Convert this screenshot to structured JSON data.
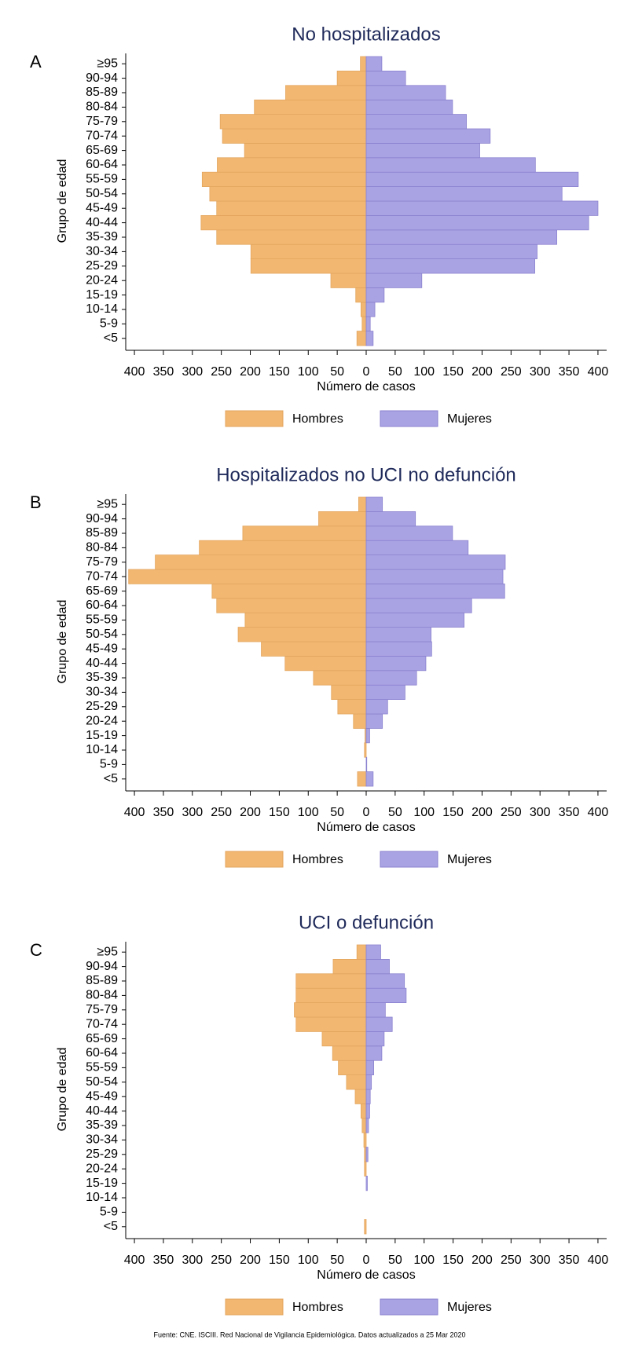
{
  "chart_data": [
    {
      "type": "pyramid",
      "label": "A",
      "title": "No hospitalizados",
      "ylabel": "Grupo de edad",
      "xlabel": "Número de casos",
      "categories": [
        "<5",
        "5-9",
        "10-14",
        "15-19",
        "20-24",
        "25-29",
        "30-34",
        "35-39",
        "40-44",
        "45-49",
        "50-54",
        "55-59",
        "60-64",
        "65-69",
        "70-74",
        "75-79",
        "80-84",
        "85-89",
        "90-94",
        "≥95"
      ],
      "series": [
        {
          "name": "Hombres",
          "color": "#f2b872",
          "values": [
            -16,
            -7,
            -9,
            -18,
            -61,
            -199,
            -199,
            -258,
            -285,
            -258,
            -270,
            -283,
            -257,
            -210,
            -248,
            -252,
            -193,
            -139,
            -50,
            -10
          ]
        },
        {
          "name": "Mujeres",
          "color": "#aaa3e3",
          "values": [
            12,
            7,
            15,
            31,
            96,
            291,
            295,
            329,
            384,
            400,
            338,
            366,
            292,
            196,
            214,
            173,
            149,
            137,
            68,
            27
          ]
        }
      ],
      "xlim": [
        -415,
        415
      ],
      "xticks": [
        {
          "value": -400,
          "label": "400"
        },
        {
          "value": -350,
          "label": "350"
        },
        {
          "value": -300,
          "label": "300"
        },
        {
          "value": -250,
          "label": "250"
        },
        {
          "value": -200,
          "label": "200"
        },
        {
          "value": -150,
          "label": "150"
        },
        {
          "value": -100,
          "label": "100"
        },
        {
          "value": -50,
          "label": "50"
        },
        0,
        50,
        100,
        150,
        200,
        250,
        300,
        350,
        400
      ]
    },
    {
      "type": "pyramid",
      "label": "B",
      "title": "Hospitalizados no UCI no defunción",
      "ylabel": "Grupo de edad",
      "xlabel": "Número de casos",
      "categories": [
        "<5",
        "5-9",
        "10-14",
        "15-19",
        "20-24",
        "25-29",
        "30-34",
        "35-39",
        "40-44",
        "45-49",
        "50-54",
        "55-59",
        "60-64",
        "65-69",
        "70-74",
        "75-79",
        "80-84",
        "85-89",
        "90-94",
        "≥95"
      ],
      "series": [
        {
          "name": "Hombres",
          "color": "#f2b872",
          "values": [
            -15,
            0,
            -3,
            -2,
            -22,
            -49,
            -60,
            -91,
            -140,
            -181,
            -221,
            -209,
            -258,
            -266,
            -410,
            -364,
            -288,
            -213,
            -82,
            -13
          ]
        },
        {
          "name": "Mujeres",
          "color": "#aaa3e3",
          "values": [
            12,
            1,
            0,
            6,
            28,
            37,
            67,
            87,
            103,
            113,
            112,
            169,
            182,
            239,
            236,
            240,
            176,
            149,
            85,
            28
          ]
        }
      ],
      "xlim": [
        -415,
        415
      ],
      "xticks": [
        {
          "value": -400,
          "label": "400"
        },
        {
          "value": -350,
          "label": "350"
        },
        {
          "value": -300,
          "label": "300"
        },
        {
          "value": -250,
          "label": "250"
        },
        {
          "value": -200,
          "label": "200"
        },
        {
          "value": -150,
          "label": "150"
        },
        {
          "value": -100,
          "label": "100"
        },
        {
          "value": -50,
          "label": "50"
        },
        0,
        50,
        100,
        150,
        200,
        250,
        300,
        350,
        400
      ]
    },
    {
      "type": "pyramid",
      "label": "C",
      "title": "UCI o defunción",
      "ylabel": "Grupo de edad",
      "xlabel": "Número de casos",
      "categories": [
        "<5",
        "5-9",
        "10-14",
        "15-19",
        "20-24",
        "25-29",
        "30-34",
        "35-39",
        "40-44",
        "45-49",
        "50-54",
        "55-59",
        "60-64",
        "65-69",
        "70-74",
        "75-79",
        "80-84",
        "85-89",
        "90-94",
        "≥95"
      ],
      "series": [
        {
          "name": "Hombres",
          "color": "#f2b872",
          "values": [
            -3,
            0,
            0,
            0,
            -3,
            -3,
            -4,
            -7,
            -9,
            -19,
            -34,
            -48,
            -58,
            -76,
            -121,
            -124,
            -121,
            -121,
            -57,
            -16
          ]
        },
        {
          "name": "Mujeres",
          "color": "#aaa3e3",
          "values": [
            0,
            0,
            0,
            2,
            0,
            3,
            0,
            4,
            6,
            7,
            9,
            13,
            27,
            31,
            45,
            33,
            69,
            66,
            40,
            25
          ]
        }
      ],
      "xlim": [
        -415,
        415
      ],
      "xticks": [
        {
          "value": -400,
          "label": "400"
        },
        {
          "value": -350,
          "label": "350"
        },
        {
          "value": -300,
          "label": "300"
        },
        {
          "value": -250,
          "label": "250"
        },
        {
          "value": -200,
          "label": "200"
        },
        {
          "value": -150,
          "label": "150"
        },
        {
          "value": -100,
          "label": "100"
        },
        {
          "value": -50,
          "label": "50"
        },
        0,
        50,
        100,
        150,
        200,
        250,
        300,
        350,
        400
      ]
    }
  ],
  "source": "Fuente: CNE. ISCIII. Red Nacional de Vigilancia Epidemiológica. Datos actualizados a 25 Mar 2020"
}
